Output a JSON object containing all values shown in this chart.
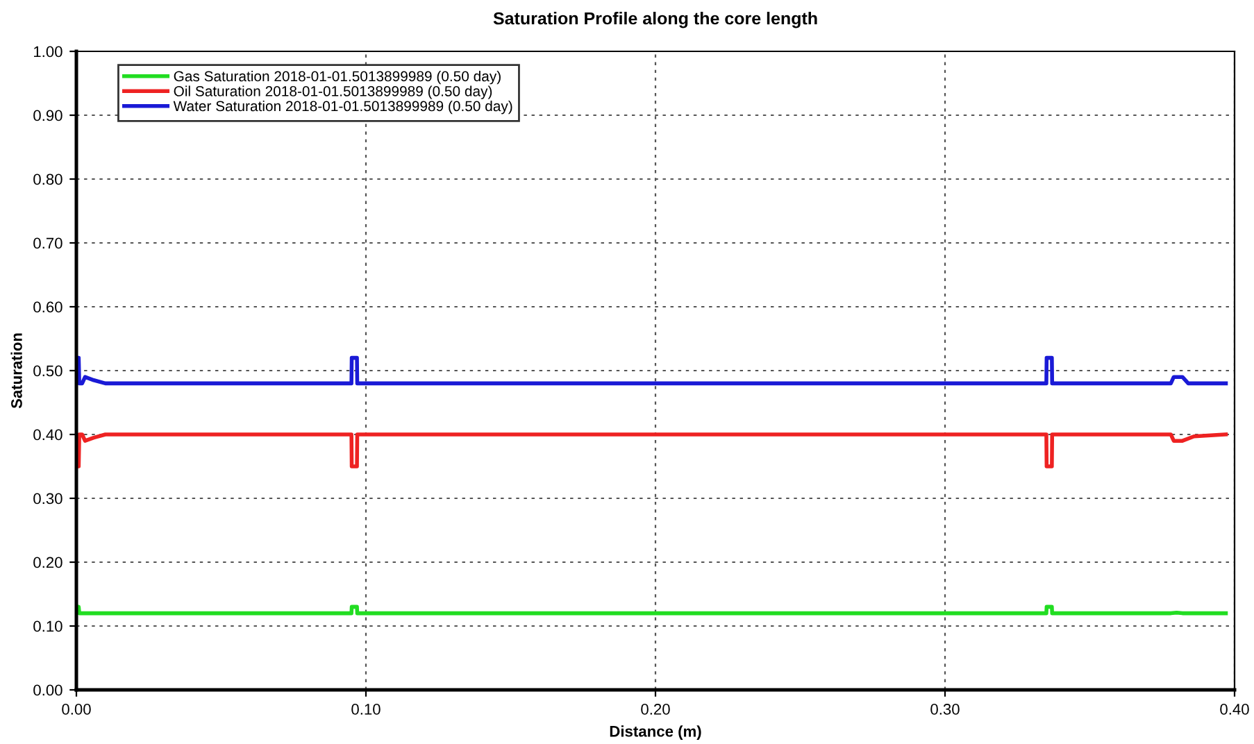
{
  "chart_data": {
    "type": "line",
    "title": "Saturation Profile along the core length",
    "xlabel": "Distance (m)",
    "ylabel": "Saturation",
    "xlim": [
      0,
      0.4
    ],
    "xticks": [
      {
        "value": 0,
        "label": "0.00"
      },
      {
        "value": 0.1,
        "label": "0.10"
      },
      {
        "value": 0.2,
        "label": "0.20"
      },
      {
        "value": 0.3,
        "label": "0.30"
      },
      {
        "value": 0.4,
        "label": "0.40"
      }
    ],
    "ylim": [
      0,
      1
    ],
    "yticks": [
      {
        "value": 0,
        "label": "0.00"
      },
      {
        "value": 0.1,
        "label": "0.10"
      },
      {
        "value": 0.2,
        "label": "0.20"
      },
      {
        "value": 0.3,
        "label": "0.30"
      },
      {
        "value": 0.4,
        "label": "0.40"
      },
      {
        "value": 0.5,
        "label": "0.50"
      },
      {
        "value": 0.6,
        "label": "0.60"
      },
      {
        "value": 0.7,
        "label": "0.70"
      },
      {
        "value": 0.8,
        "label": "0.80"
      },
      {
        "value": 0.9,
        "label": "0.90"
      },
      {
        "value": 1,
        "label": "1.00"
      }
    ],
    "grid": true,
    "legend": "top left",
    "marker": "none",
    "line_style": "solid",
    "series": [
      {
        "name": "Gas Saturation 2018-01-01.5013899989 (0.50 day)",
        "color": "#22dd22",
        "x": [
          0,
          0.0008,
          0.001,
          0.095,
          0.0951,
          0.0969,
          0.097,
          0.335,
          0.3351,
          0.3369,
          0.337,
          0.378,
          0.38,
          0.382,
          0.397
        ],
        "values": [
          0.13,
          0.13,
          0.12,
          0.12,
          0.13,
          0.13,
          0.12,
          0.12,
          0.13,
          0.13,
          0.12,
          0.12,
          0.121,
          0.12,
          0.12
        ]
      },
      {
        "name": "Oil Saturation 2018-01-01.5013899989 (0.50 day)",
        "color": "#ee2222",
        "x": [
          0,
          0.0008,
          0.001,
          0.002,
          0.003,
          0.006,
          0.01,
          0.095,
          0.0951,
          0.0969,
          0.097,
          0.2,
          0.335,
          0.3351,
          0.3369,
          0.337,
          0.378,
          0.379,
          0.382,
          0.386,
          0.397
        ],
        "values": [
          0.35,
          0.35,
          0.4,
          0.4,
          0.39,
          0.395,
          0.4,
          0.4,
          0.35,
          0.35,
          0.4,
          0.4,
          0.4,
          0.35,
          0.35,
          0.4,
          0.4,
          0.39,
          0.39,
          0.397,
          0.4
        ]
      },
      {
        "name": "Water Saturation 2018-01-01.5013899989 (0.50 day)",
        "color": "#1a1ad6",
        "x": [
          0,
          0.0008,
          0.001,
          0.002,
          0.003,
          0.006,
          0.01,
          0.095,
          0.0951,
          0.0969,
          0.097,
          0.2,
          0.335,
          0.3351,
          0.3369,
          0.337,
          0.378,
          0.379,
          0.382,
          0.384,
          0.397
        ],
        "values": [
          0.52,
          0.52,
          0.48,
          0.48,
          0.49,
          0.485,
          0.48,
          0.48,
          0.52,
          0.52,
          0.48,
          0.48,
          0.48,
          0.52,
          0.52,
          0.48,
          0.48,
          0.49,
          0.49,
          0.48,
          0.48
        ]
      }
    ]
  }
}
